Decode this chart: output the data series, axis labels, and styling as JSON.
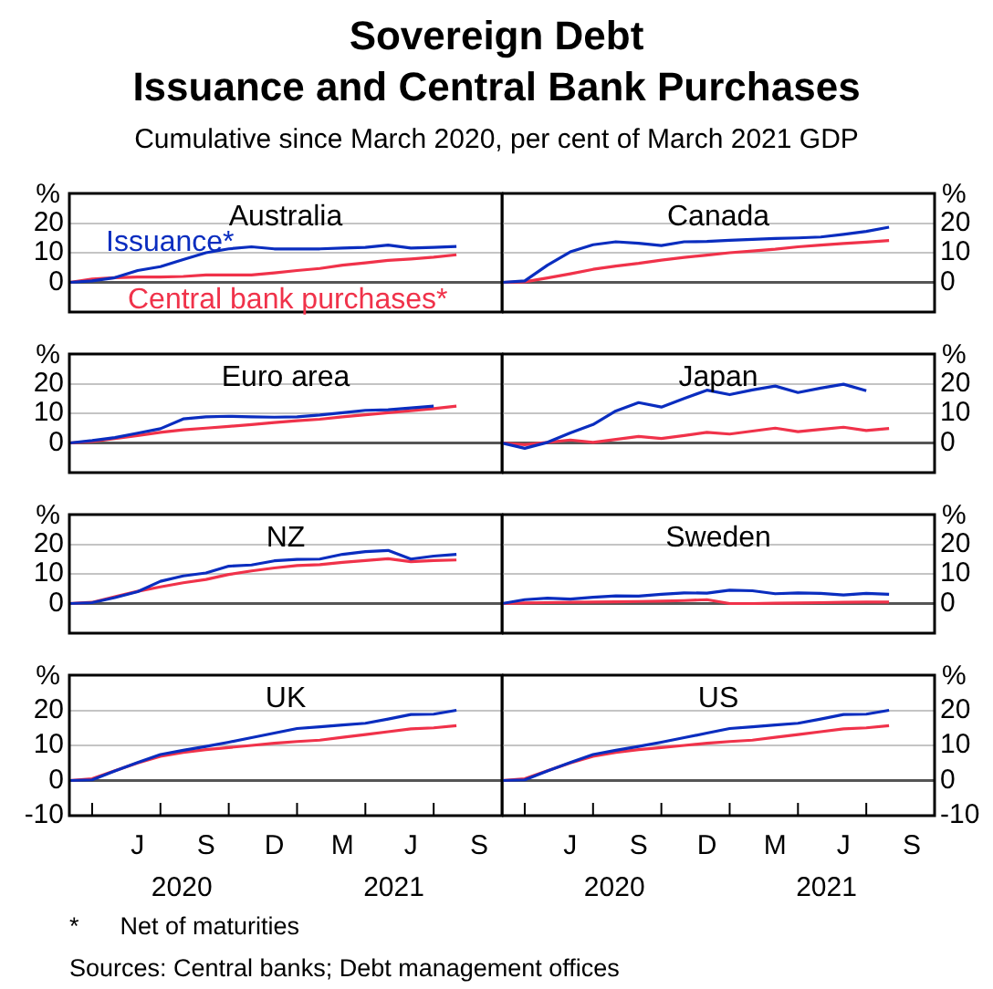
{
  "chart_data": [
    {
      "type": "other",
      "title": "Sovereign Debt\nIssuance and Central Bank Purchases",
      "subtitle": "Cumulative since March 2020, per cent of March 2021 GDP",
      "annotations": [
        "* Net of maturities",
        "Sources: Central banks; Debt management offices"
      ]
    },
    {
      "type": "line",
      "title": "Australia",
      "ylabel": "%",
      "ylim": [
        -10,
        30
      ],
      "yticks": [
        0,
        10,
        20
      ],
      "grid": "y",
      "tick_labels": "y",
      "categories": [
        null,
        null,
        null,
        null,
        null,
        null,
        null,
        null,
        null,
        null,
        null,
        null,
        null,
        null,
        null,
        null,
        null,
        null,
        null,
        null
      ],
      "series": [
        {
          "name": "Issuance*",
          "color": "#0a2dbf",
          "values": [
            0,
            0.5,
            1.6,
            4,
            5.3,
            7.7,
            10,
            11.3,
            12,
            11.3,
            11.3,
            11.3,
            11.6,
            11.8,
            12.6,
            11.6,
            11.8,
            12.1,
            null,
            null
          ]
        },
        {
          "name": "Central bank purchases*",
          "color": "#f0324a",
          "values": [
            0,
            1.1,
            1.6,
            1.8,
            1.8,
            2,
            2.5,
            2.5,
            2.5,
            3.2,
            4,
            4.7,
            5.8,
            6.6,
            7.4,
            7.9,
            8.5,
            9.3,
            null,
            null
          ]
        }
      ]
    },
    {
      "type": "line",
      "title": "Canada",
      "ylabel": "%",
      "ylim": [
        -10,
        30
      ],
      "yticks": [
        0,
        10,
        20
      ],
      "grid": "y",
      "tick_labels": "y",
      "categories": [
        null,
        null,
        null,
        null,
        null,
        null,
        null,
        null,
        null,
        null,
        null,
        null,
        null,
        null,
        null,
        null,
        null,
        null,
        null,
        null
      ],
      "series": [
        {
          "color": "#0a2dbf",
          "values": [
            0,
            0.5,
            5.8,
            10.3,
            12.7,
            13.7,
            13.2,
            12.4,
            13.7,
            13.8,
            14.2,
            14.5,
            14.8,
            15,
            15.3,
            16.2,
            17.2,
            18.6,
            null,
            null
          ]
        },
        {
          "color": "#f0324a",
          "values": [
            0,
            0.2,
            1.5,
            2.9,
            4.4,
            5.5,
            6.4,
            7.5,
            8.4,
            9.2,
            10,
            10.6,
            11.2,
            12,
            12.6,
            13.1,
            13.6,
            14.1,
            null,
            null
          ]
        }
      ]
    },
    {
      "type": "line",
      "title": "Euro area",
      "ylabel": "%",
      "ylim": [
        -10,
        30
      ],
      "yticks": [
        0,
        10,
        20
      ],
      "grid": "y",
      "tick_labels": "y",
      "categories": [
        null,
        null,
        null,
        null,
        null,
        null,
        null,
        null,
        null,
        null,
        null,
        null,
        null,
        null,
        null,
        null,
        null,
        null,
        null,
        null
      ],
      "series": [
        {
          "color": "#0a2dbf",
          "values": [
            0,
            0.8,
            1.8,
            3.3,
            4.8,
            8.1,
            8.8,
            9,
            8.8,
            8.7,
            8.8,
            9.4,
            10.2,
            11,
            11.2,
            11.8,
            12.4,
            null,
            null,
            null
          ]
        },
        {
          "color": "#f0324a",
          "values": [
            0,
            0.5,
            1.5,
            2.5,
            3.6,
            4.4,
            5,
            5.6,
            6.2,
            6.9,
            7.5,
            8,
            8.8,
            9.5,
            10.2,
            10.9,
            11.6,
            12.4,
            null,
            null
          ]
        }
      ]
    },
    {
      "type": "line",
      "title": "Japan",
      "ylabel": "%",
      "ylim": [
        -10,
        30
      ],
      "yticks": [
        0,
        10,
        20
      ],
      "grid": "y",
      "tick_labels": "y",
      "categories": [
        null,
        null,
        null,
        null,
        null,
        null,
        null,
        null,
        null,
        null,
        null,
        null,
        null,
        null,
        null,
        null,
        null,
        null,
        null,
        null
      ],
      "series": [
        {
          "color": "#0a2dbf",
          "values": [
            0,
            -1.8,
            0.2,
            3.4,
            6.2,
            10.8,
            13.6,
            12.1,
            15,
            17.8,
            16.3,
            17.9,
            19.2,
            17,
            18.5,
            19.8,
            17.6,
            null,
            null,
            null
          ]
        },
        {
          "color": "#f0324a",
          "values": [
            0,
            -0.6,
            0.2,
            1,
            0.2,
            1.2,
            2.2,
            1.5,
            2.5,
            3.6,
            3,
            4,
            5,
            3.8,
            4.6,
            5.3,
            4.2,
            4.9,
            null,
            null
          ]
        }
      ]
    },
    {
      "type": "line",
      "title": "NZ",
      "ylabel": "%",
      "ylim": [
        -10,
        30
      ],
      "yticks": [
        0,
        10,
        20
      ],
      "grid": "y",
      "tick_labels": "y",
      "categories": [
        null,
        null,
        null,
        null,
        null,
        null,
        null,
        null,
        null,
        null,
        null,
        null,
        null,
        null,
        null,
        null,
        null,
        null,
        null,
        null
      ],
      "series": [
        {
          "color": "#0a2dbf",
          "values": [
            0,
            0.3,
            2,
            4,
            7.5,
            9.3,
            10.3,
            12.6,
            13,
            14.4,
            14.9,
            15,
            16.6,
            17.5,
            17.9,
            15,
            16,
            16.6,
            null,
            null
          ]
        },
        {
          "color": "#f0324a",
          "values": [
            0,
            0.4,
            2.3,
            4.1,
            5.6,
            7,
            8.1,
            9.8,
            11,
            12,
            12.8,
            13.1,
            13.9,
            14.5,
            15.1,
            14.1,
            14.5,
            14.7,
            null,
            null
          ]
        }
      ]
    },
    {
      "type": "line",
      "title": "Sweden",
      "ylabel": "%",
      "ylim": [
        -10,
        30
      ],
      "yticks": [
        0,
        10,
        20
      ],
      "grid": "y",
      "tick_labels": "y",
      "categories": [
        null,
        null,
        null,
        null,
        null,
        null,
        null,
        null,
        null,
        null,
        null,
        null,
        null,
        null,
        null,
        null,
        null,
        null,
        null,
        null
      ],
      "series": [
        {
          "color": "#0a2dbf",
          "values": [
            0,
            1.3,
            1.8,
            1.5,
            2.1,
            2.6,
            2.5,
            3.1,
            3.6,
            3.5,
            4.5,
            4.3,
            3.3,
            3.6,
            3.4,
            2.9,
            3.4,
            3.1,
            null,
            null
          ]
        },
        {
          "color": "#f0324a",
          "values": [
            0,
            0.2,
            0.3,
            0.4,
            0.5,
            0.6,
            0.7,
            0.8,
            1,
            1.3,
            0,
            0,
            0.1,
            0.2,
            0.3,
            0.4,
            0.5,
            0.5,
            null,
            null
          ]
        }
      ]
    },
    {
      "type": "line",
      "title": "UK",
      "ylabel": "%",
      "ylim": [
        -10,
        30
      ],
      "yticks": [
        -10,
        0,
        10,
        20
      ],
      "grid": "y",
      "categories": [
        null,
        null,
        null,
        "J",
        null,
        null,
        "S",
        null,
        null,
        "D",
        null,
        null,
        "M",
        null,
        null,
        "J",
        null,
        null,
        "S",
        null
      ],
      "annotations": [
        "2020",
        "2021"
      ],
      "series": [
        {
          "color": "#0a2dbf",
          "values": [
            0,
            0.2,
            2.7,
            5.1,
            7.4,
            8.6,
            9.7,
            10.9,
            12.2,
            13.5,
            14.8,
            15.3,
            15.8,
            16.3,
            17.5,
            18.8,
            18.9,
            20,
            null,
            null
          ]
        },
        {
          "color": "#f0324a",
          "values": [
            0,
            0.5,
            2.8,
            5,
            6.9,
            8,
            8.8,
            9.4,
            10,
            10.6,
            11.1,
            11.5,
            12.3,
            13.1,
            13.9,
            14.7,
            15,
            15.6,
            null,
            null
          ]
        }
      ]
    },
    {
      "type": "line",
      "title": "US",
      "ylabel": "%",
      "ylim": [
        -10,
        30
      ],
      "yticks": [
        -10,
        0,
        10,
        20
      ],
      "grid": "y",
      "categories": [
        null,
        null,
        null,
        "J",
        null,
        null,
        "S",
        null,
        null,
        "D",
        null,
        null,
        "M",
        null,
        null,
        "J",
        null,
        null,
        "S",
        null
      ],
      "annotations": [
        "2020",
        "2021"
      ],
      "series": [
        {
          "color": "#0a2dbf",
          "values": [
            0,
            0.2,
            2.7,
            5.1,
            7.4,
            8.6,
            9.7,
            10.9,
            12.2,
            13.5,
            14.8,
            15.3,
            15.8,
            16.3,
            17.5,
            18.8,
            18.9,
            20,
            null,
            null
          ]
        },
        {
          "color": "#f0324a",
          "values": [
            0,
            0.5,
            2.8,
            5,
            6.9,
            8,
            8.8,
            9.4,
            10,
            10.6,
            11.1,
            11.5,
            12.3,
            13.1,
            13.9,
            14.7,
            15,
            15.6,
            null,
            null
          ]
        }
      ]
    }
  ]
}
